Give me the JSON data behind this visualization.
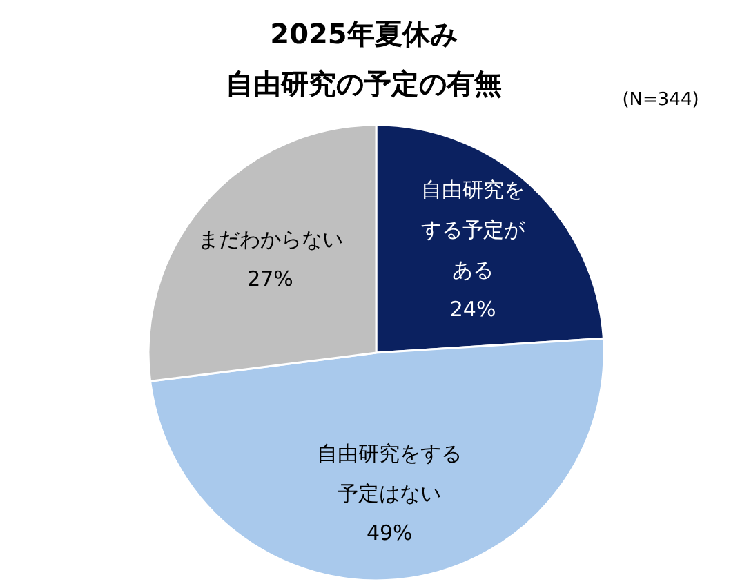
{
  "chart_data": {
    "type": "pie",
    "title": "2025年夏休み",
    "subtitle": "自由研究の予定の有無",
    "categories": [
      "自由研究をする予定がある",
      "自由研究をする予定はない",
      "まだわからない"
    ],
    "values": [
      24,
      49,
      27
    ],
    "value_labels": [
      "24%",
      "49%",
      "27%"
    ],
    "colors": [
      "#0b2160",
      "#a9c9ec",
      "#bfbfbf"
    ],
    "annotations": [
      "(N=344)"
    ]
  }
}
